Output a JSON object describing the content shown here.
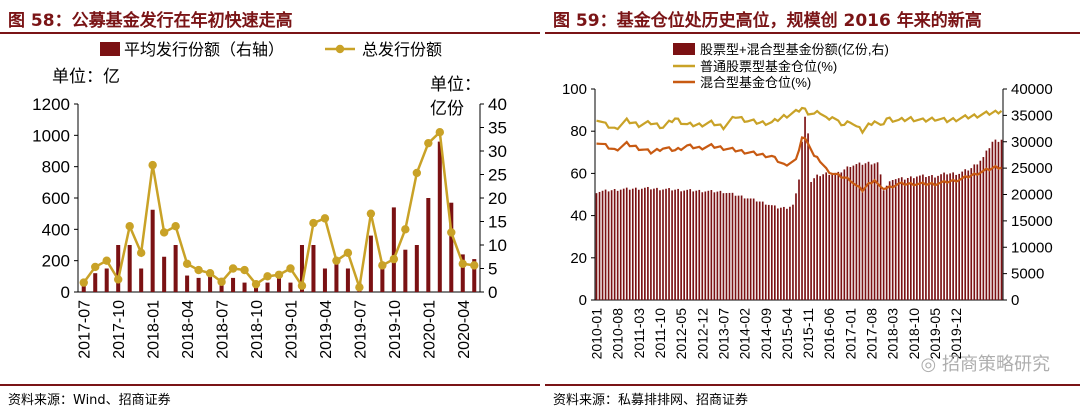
{
  "colors": {
    "brand": "#7a1416",
    "bar": "#7b1113",
    "gold": "#c9a227",
    "orange": "#c85a12",
    "wechat": "#9a9a9a"
  },
  "left": {
    "title": "图 58：公募基金发行在年初快速走高",
    "source": "资料来源：Wind、招商证券",
    "unit_left": "单位：亿",
    "unit_right_1": "单位：",
    "unit_right_2": "亿份"
  },
  "right": {
    "title": "图 59：基金仓位处历史高位，规模创 2016 年来的新高",
    "source": "资料来源：私募排排网、招商证券",
    "watermark": "招商策略研究"
  },
  "chart_data": [
    {
      "type": "bar+line",
      "title": "公募基金发行在年初快速走高",
      "categories": [
        "2017-07",
        "2017-08",
        "2017-09",
        "2017-10",
        "2017-11",
        "2017-12",
        "2018-01",
        "2018-02",
        "2018-03",
        "2018-04",
        "2018-05",
        "2018-06",
        "2018-07",
        "2018-08",
        "2018-09",
        "2018-10",
        "2018-11",
        "2018-12",
        "2019-01",
        "2019-02",
        "2019-03",
        "2019-04",
        "2019-05",
        "2019-06",
        "2019-07",
        "2019-08",
        "2019-09",
        "2019-10",
        "2019-11",
        "2019-12",
        "2020-01",
        "2020-02",
        "2020-03",
        "2020-04",
        "2020-05"
      ],
      "x_tick_labels": [
        "2017-07",
        "2017-10",
        "2018-01",
        "2018-04",
        "2018-07",
        "2018-10",
        "2019-01",
        "2019-04",
        "2019-07",
        "2019-10",
        "2020-01",
        "2020-04"
      ],
      "series": [
        {
          "name": "平均发行份额（右轴）",
          "type": "bar",
          "axis": "right",
          "values": [
            2,
            4,
            5,
            10,
            10,
            5,
            17.5,
            7.5,
            10,
            3.5,
            3,
            4,
            3,
            3,
            2,
            2,
            2,
            3,
            2,
            10,
            10,
            5,
            6,
            5,
            2,
            12,
            5,
            18,
            9,
            10,
            20,
            32,
            19,
            8,
            7
          ]
        },
        {
          "name": "总发行份额",
          "type": "line",
          "axis": "left",
          "values": [
            60,
            160,
            200,
            80,
            420,
            250,
            810,
            380,
            420,
            180,
            140,
            120,
            65,
            150,
            140,
            50,
            100,
            110,
            150,
            40,
            440,
            470,
            200,
            250,
            30,
            500,
            170,
            210,
            400,
            760,
            950,
            1020,
            380,
            180,
            170
          ]
        }
      ],
      "y_left": {
        "min": 0,
        "max": 1200,
        "ticks": [
          0,
          200,
          400,
          600,
          800,
          1000,
          1200
        ]
      },
      "y_right": {
        "min": 0,
        "max": 40,
        "ticks": [
          0,
          5,
          10,
          15,
          20,
          25,
          30,
          35,
          40
        ]
      }
    },
    {
      "type": "bar+line",
      "title": "基金仓位处历史高位，规模创2016年来的新高",
      "x_start": "2010-01",
      "x_tick_labels": [
        "2010-01",
        "2010-08",
        "2011-03",
        "2011-10",
        "2012-05",
        "2012-12",
        "2013-07",
        "2014-02",
        "2014-09",
        "2015-04",
        "2015-11",
        "2016-06",
        "2017-01",
        "2017-08",
        "2018-03",
        "2018-10",
        "2019-05",
        "2019-12"
      ],
      "series": [
        {
          "name": "股票型+混合型基金份额(亿份,右)",
          "type": "bar",
          "axis": "right",
          "anchors": [
            [
              0,
              20500
            ],
            [
              8,
              21000
            ],
            [
              16,
              21200
            ],
            [
              30,
              20800
            ],
            [
              42,
              20500
            ],
            [
              49,
              19500
            ],
            [
              55,
              18500
            ],
            [
              60,
              17500
            ],
            [
              63,
              17500
            ],
            [
              65,
              18000
            ],
            [
              66,
              20000
            ],
            [
              67,
              23000
            ],
            [
              68,
              30000
            ],
            [
              69,
              34500
            ],
            [
              70,
              32000
            ],
            [
              71,
              22500
            ],
            [
              73,
              23500
            ],
            [
              76,
              24000
            ],
            [
              80,
              24000
            ],
            [
              84,
              25500
            ],
            [
              90,
              26000
            ],
            [
              93,
              26000
            ],
            [
              95,
              21000
            ],
            [
              98,
              23000
            ],
            [
              102,
              23000
            ],
            [
              106,
              23500
            ],
            [
              112,
              23500
            ],
            [
              116,
              24000
            ],
            [
              120,
              24000
            ],
            [
              124,
              25000
            ],
            [
              128,
              27000
            ],
            [
              131,
              30000
            ],
            [
              134,
              30500
            ]
          ]
        },
        {
          "name": "普通股票型基金仓位(%)",
          "type": "line",
          "axis": "left",
          "anchors": [
            [
              0,
              86
            ],
            [
              3,
              83
            ],
            [
              6,
              81
            ],
            [
              10,
              85
            ],
            [
              14,
              83
            ],
            [
              18,
              84
            ],
            [
              22,
              82
            ],
            [
              26,
              86
            ],
            [
              30,
              83
            ],
            [
              34,
              83
            ],
            [
              38,
              84
            ],
            [
              42,
              82
            ],
            [
              46,
              87
            ],
            [
              50,
              85
            ],
            [
              54,
              84
            ],
            [
              58,
              84
            ],
            [
              62,
              87
            ],
            [
              64,
              88
            ],
            [
              66,
              89
            ],
            [
              68,
              91
            ],
            [
              70,
              89
            ],
            [
              72,
              88
            ],
            [
              74,
              89
            ],
            [
              76,
              86
            ],
            [
              78,
              87
            ],
            [
              80,
              84
            ],
            [
              82,
              83
            ],
            [
              84,
              85
            ],
            [
              86,
              82
            ],
            [
              88,
              80
            ],
            [
              90,
              83
            ],
            [
              92,
              85
            ],
            [
              94,
              82
            ],
            [
              96,
              86
            ],
            [
              100,
              85
            ],
            [
              104,
              86
            ],
            [
              108,
              85
            ],
            [
              112,
              86
            ],
            [
              116,
              85
            ],
            [
              120,
              86
            ],
            [
              124,
              87
            ],
            [
              128,
              88
            ],
            [
              132,
              89
            ],
            [
              134,
              90
            ]
          ]
        },
        {
          "name": "混合型基金仓位(%)",
          "type": "line",
          "axis": "left",
          "anchors": [
            [
              0,
              75
            ],
            [
              3,
              73
            ],
            [
              6,
              71
            ],
            [
              10,
              74
            ],
            [
              14,
              72
            ],
            [
              18,
              70
            ],
            [
              22,
              72
            ],
            [
              26,
              71
            ],
            [
              30,
              73
            ],
            [
              34,
              72
            ],
            [
              38,
              73
            ],
            [
              42,
              72
            ],
            [
              46,
              71
            ],
            [
              50,
              70
            ],
            [
              54,
              69
            ],
            [
              58,
              68
            ],
            [
              62,
              64
            ],
            [
              64,
              65
            ],
            [
              66,
              66
            ],
            [
              68,
              77
            ],
            [
              70,
              75
            ],
            [
              72,
              68
            ],
            [
              74,
              66
            ],
            [
              76,
              62
            ],
            [
              78,
              60
            ],
            [
              80,
              59
            ],
            [
              82,
              58
            ],
            [
              84,
              57
            ],
            [
              86,
              54
            ],
            [
              88,
              52
            ],
            [
              90,
              55
            ],
            [
              92,
              57
            ],
            [
              94,
              53
            ],
            [
              96,
              53
            ],
            [
              100,
              55
            ],
            [
              104,
              55
            ],
            [
              108,
              55
            ],
            [
              112,
              55
            ],
            [
              116,
              56
            ],
            [
              120,
              57
            ],
            [
              124,
              59
            ],
            [
              128,
              61
            ],
            [
              132,
              63
            ],
            [
              134,
              63
            ]
          ]
        }
      ],
      "y_left": {
        "min": 0,
        "max": 100,
        "ticks": [
          0,
          20,
          40,
          60,
          80,
          100
        ]
      },
      "y_right": {
        "min": 0,
        "max": 40000,
        "ticks": [
          0,
          5000,
          10000,
          15000,
          20000,
          25000,
          30000,
          35000,
          40000
        ]
      }
    }
  ]
}
